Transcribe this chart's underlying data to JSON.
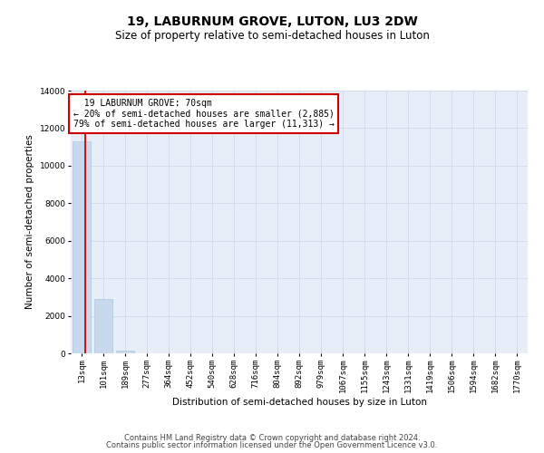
{
  "title": "19, LABURNUM GROVE, LUTON, LU3 2DW",
  "subtitle": "Size of property relative to semi-detached houses in Luton",
  "xlabel": "Distribution of semi-detached houses by size in Luton",
  "ylabel": "Number of semi-detached properties",
  "categories": [
    "13sqm",
    "101sqm",
    "189sqm",
    "277sqm",
    "364sqm",
    "452sqm",
    "540sqm",
    "628sqm",
    "716sqm",
    "804sqm",
    "892sqm",
    "979sqm",
    "1067sqm",
    "1155sqm",
    "1243sqm",
    "1331sqm",
    "1419sqm",
    "1506sqm",
    "1594sqm",
    "1682sqm",
    "1770sqm"
  ],
  "values": [
    11313,
    2885,
    130,
    0,
    0,
    0,
    0,
    0,
    0,
    0,
    0,
    0,
    0,
    0,
    0,
    0,
    0,
    0,
    0,
    0,
    0
  ],
  "bar_color": "#c9d9ed",
  "bar_edge_color": "#aec6df",
  "grid_color": "#d0d8e8",
  "background_color": "#e8eef8",
  "annotation_line1": "  19 LABURNUM GROVE: 70sqm",
  "annotation_line2": "← 20% of semi-detached houses are smaller (2,885)",
  "annotation_line3": "79% of semi-detached houses are larger (11,313) →",
  "annotation_box_color": "#ffffff",
  "annotation_box_edge_color": "#cc0000",
  "property_line_color": "#cc0000",
  "ylim": [
    0,
    14000
  ],
  "yticks": [
    0,
    2000,
    4000,
    6000,
    8000,
    10000,
    12000,
    14000
  ],
  "footer_line1": "Contains HM Land Registry data © Crown copyright and database right 2024.",
  "footer_line2": "Contains public sector information licensed under the Open Government Licence v3.0.",
  "title_fontsize": 10,
  "subtitle_fontsize": 8.5,
  "axis_label_fontsize": 7.5,
  "tick_fontsize": 6.5,
  "annotation_fontsize": 7,
  "footer_fontsize": 6
}
